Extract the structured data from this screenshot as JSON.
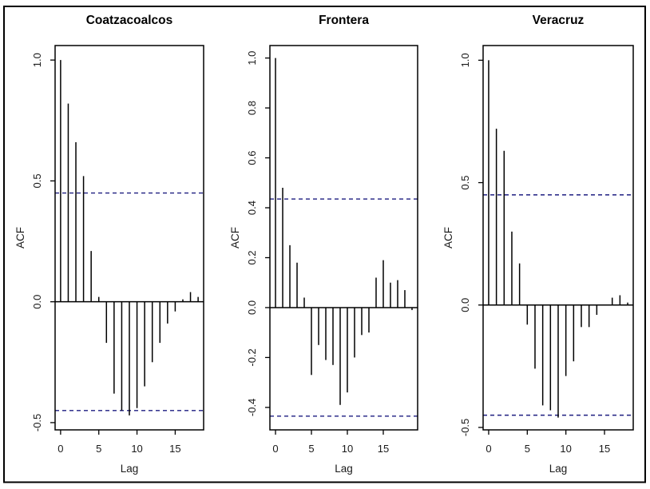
{
  "figure": {
    "background": "#ffffff",
    "border_color": "#000000",
    "bar_color": "#000000",
    "conf_line_color": "#1d1d80"
  },
  "chart_data": [
    {
      "type": "bar",
      "variant": "acf-stem-plot",
      "title": "Coatzacoalcos",
      "xlabel": "Lag",
      "ylabel": "ACF",
      "lags": [
        0,
        1,
        2,
        3,
        4,
        5,
        6,
        7,
        8,
        9,
        10,
        11,
        12,
        13,
        14,
        15,
        16,
        17,
        18
      ],
      "values": [
        1.0,
        0.82,
        0.66,
        0.52,
        0.21,
        0.02,
        -0.17,
        -0.38,
        -0.45,
        -0.47,
        -0.44,
        -0.35,
        -0.25,
        -0.17,
        -0.09,
        -0.04,
        0.01,
        0.04,
        0.02
      ],
      "conf_interval": 0.45,
      "conf_line_style": "dashed",
      "xlim": [
        -0.72,
        18.72
      ],
      "ylim": [
        -0.53,
        1.06
      ],
      "xticks": [
        0,
        5,
        10,
        15
      ],
      "xtick_labels": [
        "0",
        "5",
        "10",
        "15"
      ],
      "yticks": [
        -0.5,
        0.0,
        0.5,
        1.0
      ],
      "ytick_labels": [
        "-0.5",
        "0.0",
        "0.5",
        "1.0"
      ],
      "grid": false,
      "legend": null
    },
    {
      "type": "bar",
      "variant": "acf-stem-plot",
      "title": "Frontera",
      "xlabel": "Lag",
      "ylabel": "ACF",
      "lags": [
        0,
        1,
        2,
        3,
        4,
        5,
        6,
        7,
        8,
        9,
        10,
        11,
        12,
        13,
        14,
        15,
        16,
        17,
        18,
        19
      ],
      "values": [
        1.0,
        0.48,
        0.25,
        0.18,
        0.04,
        -0.27,
        -0.15,
        -0.21,
        -0.23,
        -0.39,
        -0.34,
        -0.2,
        -0.11,
        -0.1,
        0.12,
        0.19,
        0.1,
        0.11,
        0.07,
        -0.01
      ],
      "conf_interval": 0.435,
      "conf_line_style": "dashed",
      "xlim": [
        -0.78,
        19.78
      ],
      "ylim": [
        -0.49,
        1.05
      ],
      "xticks": [
        0,
        5,
        10,
        15
      ],
      "xtick_labels": [
        "0",
        "5",
        "10",
        "15"
      ],
      "yticks": [
        -0.4,
        -0.2,
        0.0,
        0.2,
        0.4,
        0.6,
        0.8,
        1.0
      ],
      "ytick_labels": [
        "-0.4",
        "-0.2",
        "0.0",
        "0.2",
        "0.4",
        "0.6",
        "0.8",
        "1.0"
      ],
      "grid": false,
      "legend": null
    },
    {
      "type": "bar",
      "variant": "acf-stem-plot",
      "title": "Veracruz",
      "xlabel": "Lag",
      "ylabel": "ACF",
      "lags": [
        0,
        1,
        2,
        3,
        4,
        5,
        6,
        7,
        8,
        9,
        10,
        11,
        12,
        13,
        14,
        15,
        16,
        17,
        18
      ],
      "values": [
        1.0,
        0.72,
        0.63,
        0.3,
        0.17,
        -0.08,
        -0.26,
        -0.41,
        -0.43,
        -0.46,
        -0.29,
        -0.23,
        -0.09,
        -0.09,
        -0.04,
        0.0,
        0.03,
        0.04,
        0.01
      ],
      "conf_interval": 0.45,
      "conf_line_style": "dashed",
      "xlim": [
        -0.72,
        18.72
      ],
      "ylim": [
        -0.51,
        1.06
      ],
      "xticks": [
        0,
        5,
        10,
        15
      ],
      "xtick_labels": [
        "0",
        "5",
        "10",
        "15"
      ],
      "yticks": [
        -0.5,
        0.0,
        0.5,
        1.0
      ],
      "ytick_labels": [
        "-0.5",
        "0.0",
        "0.5",
        "1.0"
      ],
      "grid": false,
      "legend": null
    }
  ]
}
